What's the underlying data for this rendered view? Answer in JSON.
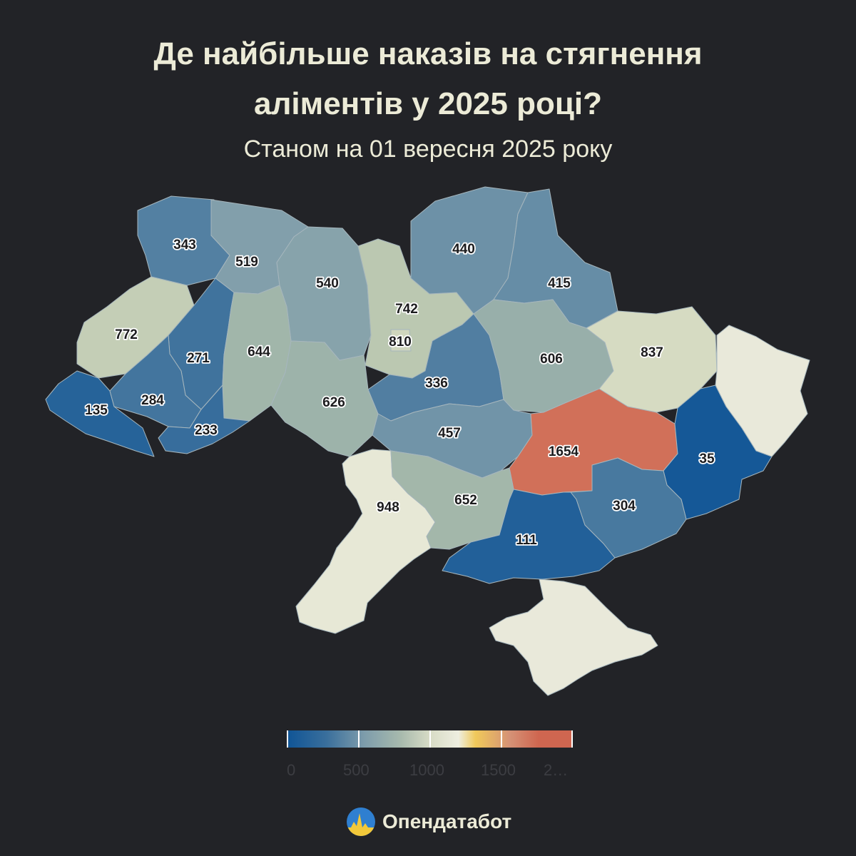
{
  "title_line1": "Де найбільше наказів на стягнення",
  "title_line2": "аліментів у 2025 році?",
  "subtitle": "Станом на 01 вересня 2025 року",
  "legend": {
    "ticks": [
      "0",
      "500",
      "1000",
      "1500",
      "2…"
    ],
    "min": 0,
    "max": 2000,
    "colors": [
      "#0f5496",
      "#7d9cab",
      "#eeeee0",
      "#f0c95a",
      "#cf6650"
    ]
  },
  "brand": {
    "name": "Опендатабот",
    "logo_icon": "opendatabot-logo-icon"
  },
  "map_data": {
    "type": "choropleth",
    "regions": [
      {
        "id": "volyn",
        "value": "343"
      },
      {
        "id": "rivne",
        "value": "519"
      },
      {
        "id": "zhytomyr",
        "value": "540"
      },
      {
        "id": "kyiv-oblast",
        "value": "742"
      },
      {
        "id": "kyiv-city",
        "value": "810"
      },
      {
        "id": "chernihiv",
        "value": "440"
      },
      {
        "id": "sumy",
        "value": "415"
      },
      {
        "id": "lviv",
        "value": "772"
      },
      {
        "id": "ternopil",
        "value": "271"
      },
      {
        "id": "khmelnytskyi",
        "value": "644"
      },
      {
        "id": "vinnytsia",
        "value": "626"
      },
      {
        "id": "cherkasy",
        "value": "336"
      },
      {
        "id": "poltava",
        "value": "606"
      },
      {
        "id": "kharkiv",
        "value": "837"
      },
      {
        "id": "zakarpattia",
        "value": "135"
      },
      {
        "id": "ivano-frankivsk",
        "value": "284"
      },
      {
        "id": "chernivtsi",
        "value": "233"
      },
      {
        "id": "kirovohrad",
        "value": "457"
      },
      {
        "id": "dnipropetrovsk",
        "value": "1654"
      },
      {
        "id": "donetsk",
        "value": "35"
      },
      {
        "id": "luhansk",
        "value": ""
      },
      {
        "id": "odesa",
        "value": "948"
      },
      {
        "id": "mykolaiv",
        "value": "652"
      },
      {
        "id": "kherson",
        "value": "111"
      },
      {
        "id": "zaporizhzhia",
        "value": "304"
      },
      {
        "id": "crimea",
        "value": ""
      }
    ]
  }
}
